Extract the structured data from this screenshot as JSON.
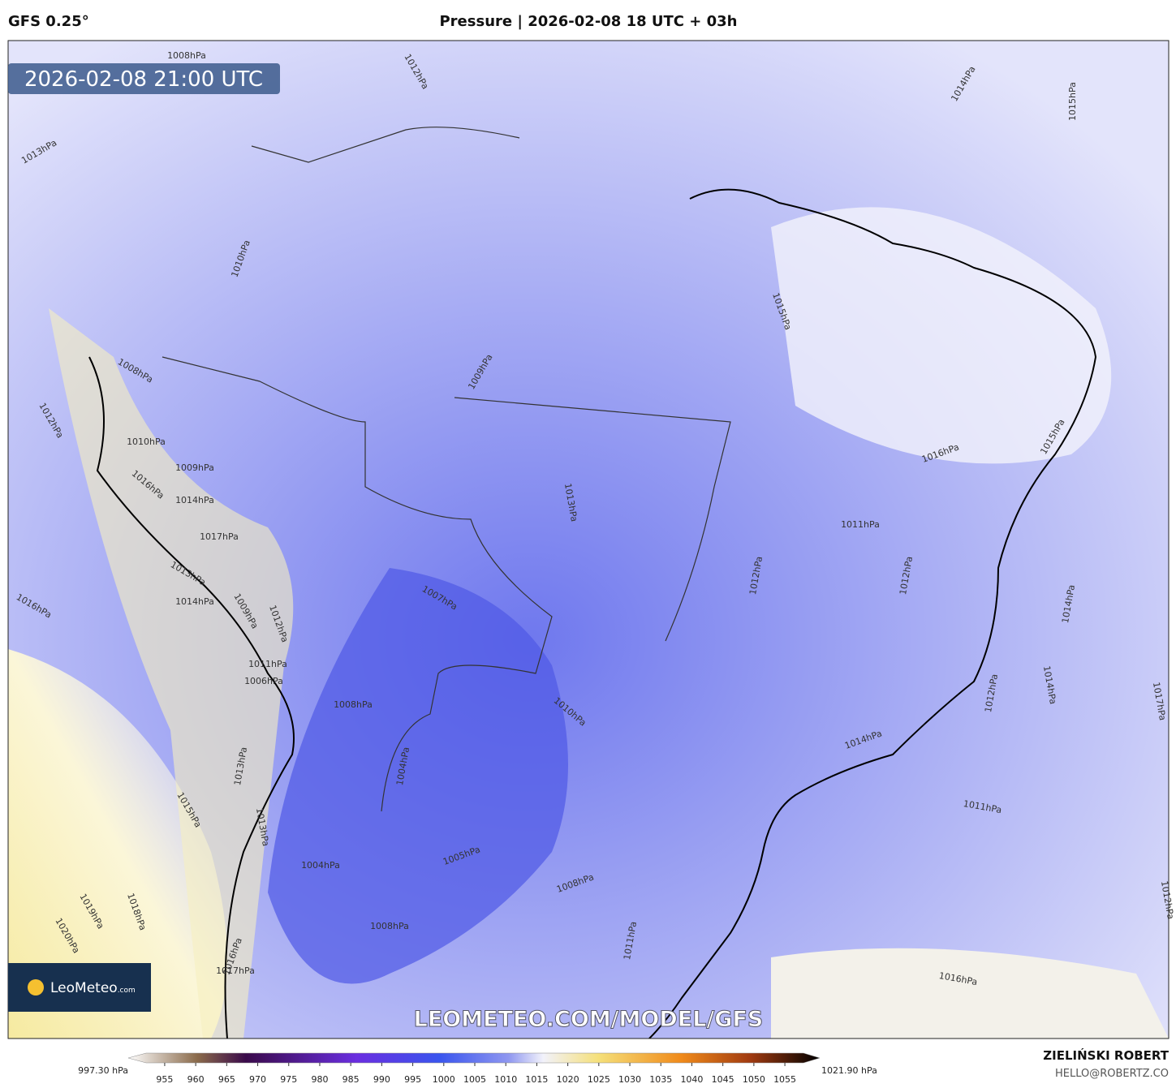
{
  "header": {
    "model": "GFS 0.25°",
    "title": "Pressure | 2026-02-08 18 UTC + 03h"
  },
  "map": {
    "timestamp": "2026-02-08 21:00 UTC",
    "logo": "LeoMeteo",
    "logo_suffix": ".com",
    "watermark": "LEOMETEO.COM/MODEL/GFS",
    "contour_labels": [
      "1008hPa",
      "1012hPa",
      "1014hPa",
      "1015hPa",
      "1013hPa",
      "1010hPa",
      "1009hPa",
      "1008hPa",
      "1012hPa",
      "1010hPa",
      "1009hPa",
      "1016hPa",
      "1014hPa",
      "1017hPa",
      "1013hPa",
      "1014hPa",
      "1016hPa",
      "1009hPa",
      "1012hPa",
      "1011hPa",
      "1006hPa",
      "1007hPa",
      "1010hPa",
      "1013hPa",
      "1015hPa",
      "1014hPa",
      "1016hPa",
      "1011hPa",
      "1012hPa",
      "1012hPa",
      "1015hPa",
      "1014hPa",
      "1012hPa",
      "1017hPa",
      "1014hPa",
      "1011hPa",
      "1016hPa",
      "1008hPa",
      "1004hPa",
      "1005hPa",
      "1008hPa",
      "1011hPa",
      "1004hPa",
      "1008hPa",
      "1015hPa",
      "1013hPa",
      "1019hPa",
      "1018hPa",
      "1020hPa",
      "1016hPa",
      "1017hPa",
      "1012hPa",
      "1013hPa"
    ]
  },
  "colorbar": {
    "min_label": "997.30 hPa",
    "max_label": "1021.90 hPa",
    "range": [
      952,
      1058
    ],
    "ticks": [
      955,
      960,
      965,
      970,
      975,
      980,
      985,
      990,
      995,
      1000,
      1005,
      1010,
      1015,
      1020,
      1025,
      1030,
      1035,
      1040,
      1045,
      1050,
      1055
    ]
  },
  "footer": {
    "author": "ZIELIŃSKI ROBERT",
    "email": "HELLO@ROBERTZ.CO"
  }
}
